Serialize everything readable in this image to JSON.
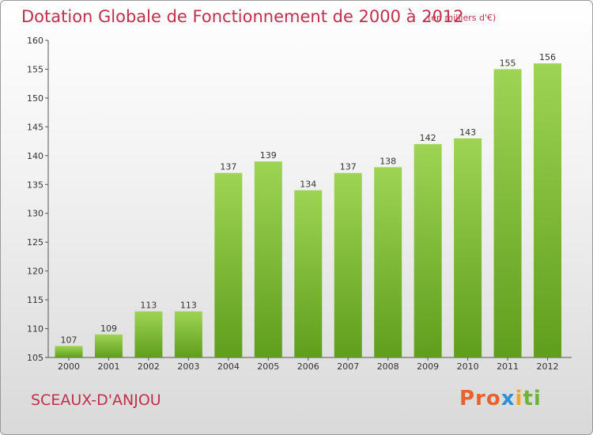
{
  "chart_data": {
    "type": "bar",
    "title": "Dotation Globale de Fonctionnement de 2000 à 2012",
    "subtitle": "(en milliers d'€)",
    "categories": [
      "2000",
      "2001",
      "2002",
      "2003",
      "2004",
      "2005",
      "2006",
      "2007",
      "2008",
      "2009",
      "2010",
      "2011",
      "2012"
    ],
    "values": [
      107,
      109,
      113,
      113,
      137,
      139,
      134,
      137,
      138,
      142,
      143,
      155,
      156
    ],
    "ylim": [
      105,
      160
    ],
    "yticks": [
      105,
      110,
      115,
      120,
      125,
      130,
      135,
      140,
      145,
      150,
      155,
      160
    ],
    "grid": false,
    "bar_color": "#7fbf3a"
  },
  "footer": {
    "place": "SCEAUX-D'ANJOU",
    "brand_parts": [
      "Pro",
      "x",
      "i",
      "ti"
    ]
  }
}
